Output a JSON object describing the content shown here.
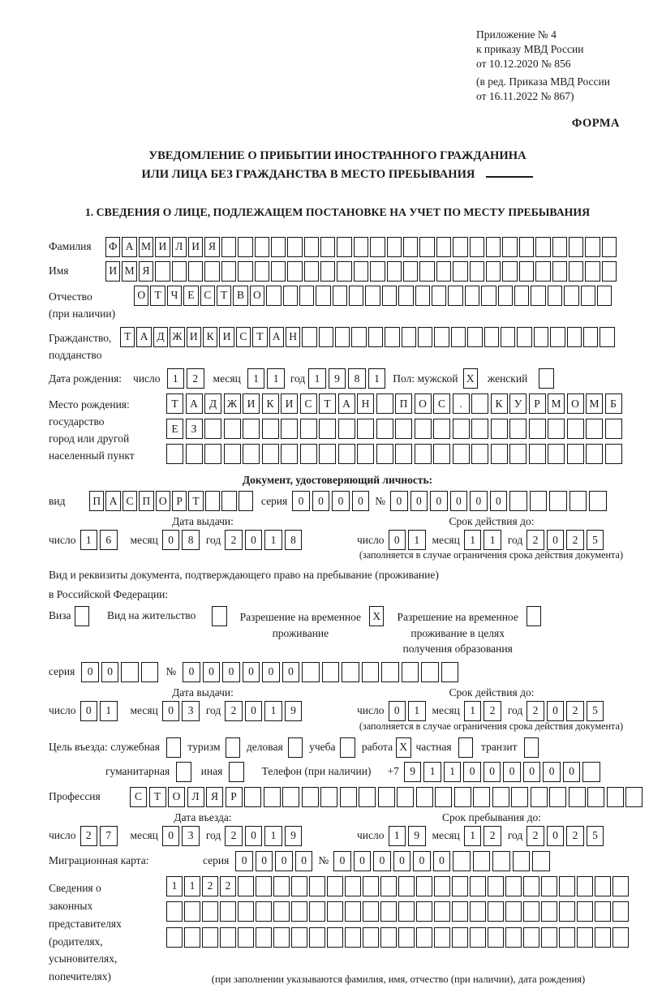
{
  "theme": {
    "ink": "#1b1b1b",
    "background": "#ffffff"
  },
  "doc": {
    "header_lines": [
      "Приложение № 4",
      "к приказу МВД России",
      "от 10.12.2020 № 856"
    ],
    "header_sub_lines": [
      "(в ред. Приказа МВД России",
      "от 16.11.2022 № 867)"
    ],
    "forma_label": "ФОРМА",
    "title_line1": "УВЕДОМЛЕНИЕ О ПРИБЫТИИ ИНОСТРАННОГО ГРАЖДАНИНА",
    "title_line2": "ИЛИ ЛИЦА БЕЗ ГРАЖДАНСТВА В МЕСТО ПРЕБЫВАНИЯ",
    "section1_heading": "1. СВЕДЕНИЯ О ЛИЦЕ, ПОДЛЕЖАЩЕМ ПОСТАНОВКЕ НА УЧЕТ ПО МЕСТУ ПРЕБЫВАНИЯ"
  },
  "labels": {
    "surname": "Фамилия",
    "given_name": "Имя",
    "patronymic_1": "Отчество",
    "patronymic_2": "(при наличии)",
    "citizenship_1": "Гражданство,",
    "citizenship_2": "подданство",
    "birth_date": "Дата рождения:",
    "day": "число",
    "month": "месяц",
    "year": "год",
    "sex_male": "Пол: мужской",
    "sex_female": "женский",
    "birth_place_1": "Место рождения:",
    "birth_place_2": "государство",
    "birth_place_3": "город или другой",
    "birth_place_4": "населенный пункт",
    "id_doc_heading": "Документ, удостоверяющий личность:",
    "id_type": "вид",
    "series": "серия",
    "number": "№",
    "issue_date": "Дата выдачи:",
    "valid_until": "Срок действия до:",
    "valid_note": "(заполняется в случае ограничения срока действия документа)",
    "stay_doc_line1": "Вид и реквизиты документа, подтверждающего право на пребывание (проживание)",
    "stay_doc_line2": "в Российской Федерации:",
    "visa": "Виза",
    "residence_permit": "Вид на жительство",
    "temp_residence_1": "Разрешение на временное",
    "temp_residence_2": "проживание",
    "temp_residence_edu_1": "Разрешение на временное",
    "temp_residence_edu_2": "проживание в целях",
    "temp_residence_edu_3": "получения образования",
    "purpose_heading": "Цель въезда: служебная",
    "purpose_tourism": "туризм",
    "purpose_business": "деловая",
    "purpose_study": "учеба",
    "purpose_work": "работа",
    "purpose_private": "частная",
    "purpose_transit": "транзит",
    "purpose_humanitarian": "гуманитарная",
    "purpose_other": "иная",
    "phone": "Телефон (при наличии)",
    "phone_prefix": "+7",
    "profession": "Профессия",
    "entry_date": "Дата въезда:",
    "stay_until": "Срок пребывания до:",
    "migcard": "Миграционная карта:",
    "legal_rep_lines": [
      "Сведения о",
      "законных",
      "представителях",
      "(родителях,",
      "усыновителях,",
      "попечителях)"
    ],
    "legal_rep_note": "(при заполнении указываются фамилия, имя, отчество (при наличии), дата рождения)"
  },
  "fields": {
    "surname": {
      "value": "ФАМИЛИЯ",
      "count": 31
    },
    "given_name": {
      "value": "ИМЯ",
      "count": 31
    },
    "patronymic": {
      "value": "ОТЧЕСТВО",
      "count": 29
    },
    "citizenship": {
      "value": "ТАДЖИКИСТАН",
      "count": 30
    },
    "birth_day": {
      "value": "12",
      "count": 2
    },
    "birth_month": {
      "value": "11",
      "count": 2
    },
    "birth_year": {
      "value": "1981",
      "count": 4
    },
    "sex_male": {
      "value": "X",
      "count": 1
    },
    "sex_female": {
      "value": "",
      "count": 1
    },
    "birth_place_row1": {
      "value": "ТАДЖИКИСТАН ПОС. КУРМОМБ",
      "count": 24
    },
    "birth_place_row2": {
      "value": "ЕЗ",
      "count": 24
    },
    "birth_place_row3": {
      "value": "",
      "count": 24
    },
    "id_doc_type": {
      "value": "ПАСПОРТ",
      "count": 10
    },
    "id_doc_series": {
      "value": "0000",
      "count": 4
    },
    "id_doc_number": {
      "value": "000000",
      "count": 11
    },
    "id_issue_day": {
      "value": "16",
      "count": 2
    },
    "id_issue_month": {
      "value": "08",
      "count": 2
    },
    "id_issue_year": {
      "value": "2018",
      "count": 4
    },
    "id_valid_day": {
      "value": "01",
      "count": 2
    },
    "id_valid_month": {
      "value": "11",
      "count": 2
    },
    "id_valid_year": {
      "value": "2025",
      "count": 4
    },
    "visa_checkbox": {
      "value": "",
      "count": 1
    },
    "residence_permit_checkbox": {
      "value": "",
      "count": 1
    },
    "temp_residence_checkbox": {
      "value": "X",
      "count": 1
    },
    "temp_residence_edu_checkbox": {
      "value": "",
      "count": 1
    },
    "stay_doc_series": {
      "value": "00",
      "count": 4
    },
    "stay_doc_number": {
      "value": "000000",
      "count": 14
    },
    "stay_issue_day": {
      "value": "01",
      "count": 2
    },
    "stay_issue_month": {
      "value": "03",
      "count": 2
    },
    "stay_issue_year": {
      "value": "2019",
      "count": 4
    },
    "stay_valid_day": {
      "value": "01",
      "count": 2
    },
    "stay_valid_month": {
      "value": "12",
      "count": 2
    },
    "stay_valid_year": {
      "value": "2025",
      "count": 4
    },
    "purpose_official_checkbox": {
      "value": "",
      "count": 1
    },
    "purpose_tourism_checkbox": {
      "value": "",
      "count": 1
    },
    "purpose_business_checkbox": {
      "value": "",
      "count": 1
    },
    "purpose_study_checkbox": {
      "value": "",
      "count": 1
    },
    "purpose_work_checkbox": {
      "value": "X",
      "count": 1
    },
    "purpose_private_checkbox": {
      "value": "",
      "count": 1
    },
    "purpose_transit_checkbox": {
      "value": "",
      "count": 1
    },
    "purpose_humanitarian_checkbox": {
      "value": "",
      "count": 1
    },
    "purpose_other_checkbox": {
      "value": "",
      "count": 1
    },
    "phone": {
      "value": "911000000",
      "count": 10
    },
    "profession": {
      "value": "СТОЛЯР",
      "count": 27
    },
    "entry_day": {
      "value": "27",
      "count": 2
    },
    "entry_month": {
      "value": "03",
      "count": 2
    },
    "entry_year": {
      "value": "2019",
      "count": 4
    },
    "stay_until_day": {
      "value": "19",
      "count": 2
    },
    "stay_until_month": {
      "value": "12",
      "count": 2
    },
    "stay_until_year": {
      "value": "2025",
      "count": 4
    },
    "migcard_series": {
      "value": "0000",
      "count": 4
    },
    "migcard_number": {
      "value": "000000",
      "count": 11
    },
    "legal_rep_row1": {
      "value": "1122",
      "count": 26
    },
    "legal_rep_row2": {
      "value": "",
      "count": 26
    },
    "legal_rep_row3": {
      "value": "",
      "count": 26
    }
  }
}
